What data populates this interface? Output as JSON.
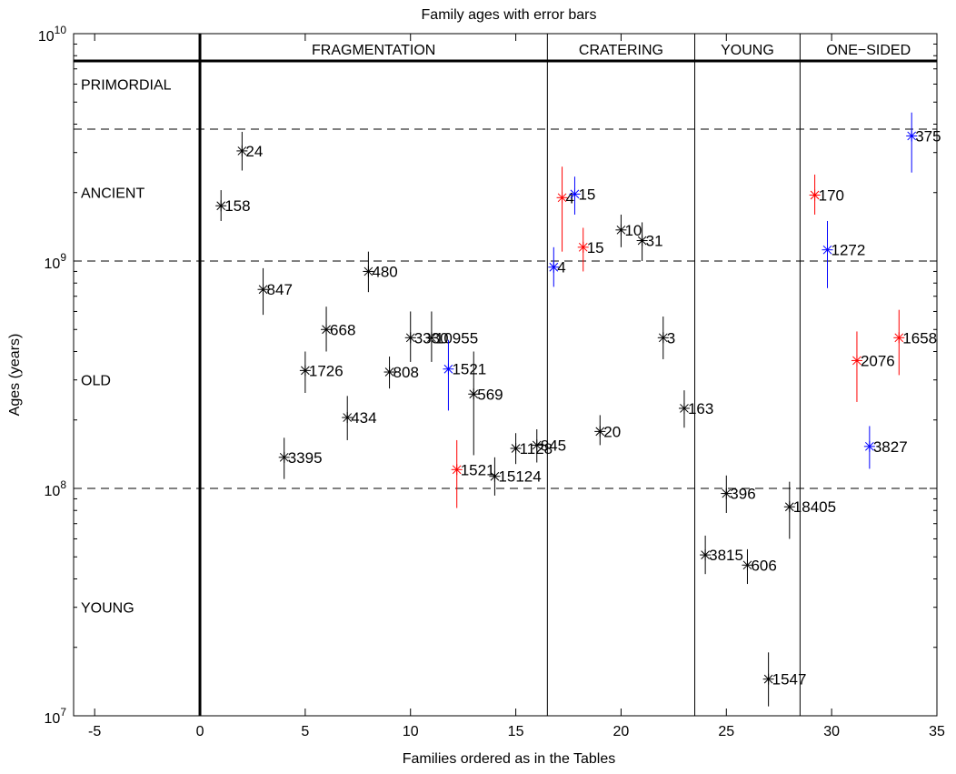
{
  "chart_data": {
    "type": "scatter",
    "title": "Family ages with error bars",
    "xlabel": "Families ordered as in the Tables",
    "ylabel": "Ages (years)",
    "xlim": [
      -6,
      35
    ],
    "ylim": [
      10000000,
      10000000000
    ],
    "yscale": "log",
    "grid": false,
    "x_ticks": [
      -5,
      0,
      5,
      10,
      15,
      20,
      25,
      30,
      35
    ],
    "y_ticks": [
      {
        "value": 10000000,
        "base": "10",
        "exp": "7"
      },
      {
        "value": 100000000,
        "base": "10",
        "exp": "8"
      },
      {
        "value": 1000000000,
        "base": "10",
        "exp": "9"
      },
      {
        "value": 10000000000,
        "base": "10",
        "exp": "10"
      }
    ],
    "colors": {
      "black": "#000000",
      "red": "#ff0000",
      "blue": "#0000ff"
    },
    "sections": [
      {
        "label": "FRAGMENTATION",
        "x_start": 0,
        "x_end": 16.5
      },
      {
        "label": "CRATERING",
        "x_start": 16.5,
        "x_end": 23.5
      },
      {
        "label": "YOUNG",
        "x_start": 23.5,
        "x_end": 28.5
      },
      {
        "label": "ONE−SIDED",
        "x_start": 28.5,
        "x_end": 35
      }
    ],
    "age_classes": [
      {
        "label": "PRIMORDIAL",
        "y": 6000000000
      },
      {
        "label": "ANCIENT",
        "y": 2000000000
      },
      {
        "label": "OLD",
        "y": 300000000
      },
      {
        "label": "YOUNG",
        "y": 30000000
      }
    ],
    "age_boundaries": [
      3800000000,
      1000000000,
      100000000
    ],
    "points": [
      {
        "label": "158",
        "x": 1,
        "y": 1750000000,
        "low": 1500000000,
        "high": 2050000000,
        "color": "black"
      },
      {
        "label": "24",
        "x": 2,
        "y": 3050000000,
        "low": 2500000000,
        "high": 3700000000,
        "color": "black"
      },
      {
        "label": "847",
        "x": 3,
        "y": 750000000,
        "low": 580000000,
        "high": 930000000,
        "color": "black"
      },
      {
        "label": "3395",
        "x": 4,
        "y": 137000000,
        "low": 110000000,
        "high": 167000000,
        "color": "black"
      },
      {
        "label": "1726",
        "x": 5,
        "y": 330000000,
        "low": 263000000,
        "high": 400000000,
        "color": "black"
      },
      {
        "label": "668",
        "x": 6,
        "y": 500000000,
        "low": 400000000,
        "high": 630000000,
        "color": "black"
      },
      {
        "label": "434",
        "x": 7,
        "y": 205000000,
        "low": 163000000,
        "high": 255000000,
        "color": "black"
      },
      {
        "label": "480",
        "x": 8,
        "y": 900000000,
        "low": 730000000,
        "high": 1100000000,
        "color": "black"
      },
      {
        "label": "808",
        "x": 9,
        "y": 325000000,
        "low": 275000000,
        "high": 380000000,
        "color": "black"
      },
      {
        "label": "3330",
        "x": 10,
        "y": 460000000,
        "low": 360000000,
        "high": 600000000,
        "color": "black"
      },
      {
        "label": "10955",
        "x": 11,
        "y": 460000000,
        "low": 360000000,
        "high": 600000000,
        "color": "black"
      },
      {
        "label": "1521",
        "x": 11.8,
        "y": 335000000,
        "low": 220000000,
        "high": 450000000,
        "color": "blue"
      },
      {
        "label": "1521",
        "x": 12.2,
        "y": 121000000,
        "low": 82000000,
        "high": 163000000,
        "color": "red"
      },
      {
        "label": "569",
        "x": 13,
        "y": 260000000,
        "low": 140000000,
        "high": 400000000,
        "color": "black"
      },
      {
        "label": "15124",
        "x": 14,
        "y": 113000000,
        "low": 93000000,
        "high": 137000000,
        "color": "black"
      },
      {
        "label": "1128",
        "x": 15,
        "y": 150000000,
        "low": 128000000,
        "high": 175000000,
        "color": "black"
      },
      {
        "label": "845",
        "x": 16,
        "y": 155000000,
        "low": 130000000,
        "high": 182000000,
        "color": "black"
      },
      {
        "label": "4",
        "x": 16.8,
        "y": 940000000,
        "low": 770000000,
        "high": 1150000000,
        "color": "blue"
      },
      {
        "label": "4",
        "x": 17.2,
        "y": 1900000000,
        "low": 1100000000,
        "high": 2600000000,
        "color": "red"
      },
      {
        "label": "15",
        "x": 17.8,
        "y": 1970000000,
        "low": 1600000000,
        "high": 2350000000,
        "color": "blue"
      },
      {
        "label": "15",
        "x": 18.2,
        "y": 1150000000,
        "low": 900000000,
        "high": 1400000000,
        "color": "red"
      },
      {
        "label": "20",
        "x": 19,
        "y": 178000000,
        "low": 155000000,
        "high": 210000000,
        "color": "black"
      },
      {
        "label": "10",
        "x": 20,
        "y": 1370000000,
        "low": 1150000000,
        "high": 1600000000,
        "color": "black"
      },
      {
        "label": "31",
        "x": 21,
        "y": 1230000000,
        "low": 1000000000,
        "high": 1480000000,
        "color": "black"
      },
      {
        "label": "3",
        "x": 22,
        "y": 460000000,
        "low": 370000000,
        "high": 570000000,
        "color": "black"
      },
      {
        "label": "163",
        "x": 23,
        "y": 225000000,
        "low": 185000000,
        "high": 270000000,
        "color": "black"
      },
      {
        "label": "3815",
        "x": 24,
        "y": 51000000,
        "low": 42000000,
        "high": 62000000,
        "color": "black"
      },
      {
        "label": "396",
        "x": 25,
        "y": 95000000,
        "low": 78000000,
        "high": 114000000,
        "color": "black"
      },
      {
        "label": "606",
        "x": 26,
        "y": 46000000,
        "low": 38000000,
        "high": 54000000,
        "color": "black"
      },
      {
        "label": "1547",
        "x": 27,
        "y": 14500000,
        "low": 11000000,
        "high": 19000000,
        "color": "black"
      },
      {
        "label": "18405",
        "x": 28,
        "y": 83000000,
        "low": 60000000,
        "high": 107000000,
        "color": "black"
      },
      {
        "label": "170",
        "x": 29.2,
        "y": 1950000000,
        "low": 1600000000,
        "high": 2400000000,
        "color": "red"
      },
      {
        "label": "1272",
        "x": 29.8,
        "y": 1120000000,
        "low": 760000000,
        "high": 1500000000,
        "color": "blue"
      },
      {
        "label": "2076",
        "x": 31.2,
        "y": 365000000,
        "low": 240000000,
        "high": 490000000,
        "color": "red"
      },
      {
        "label": "3827",
        "x": 31.8,
        "y": 153000000,
        "low": 122000000,
        "high": 188000000,
        "color": "blue"
      },
      {
        "label": "1658",
        "x": 33.2,
        "y": 460000000,
        "low": 315000000,
        "high": 610000000,
        "color": "red"
      },
      {
        "label": "375",
        "x": 33.8,
        "y": 3550000000,
        "low": 2450000000,
        "high": 4500000000,
        "color": "blue"
      }
    ]
  }
}
